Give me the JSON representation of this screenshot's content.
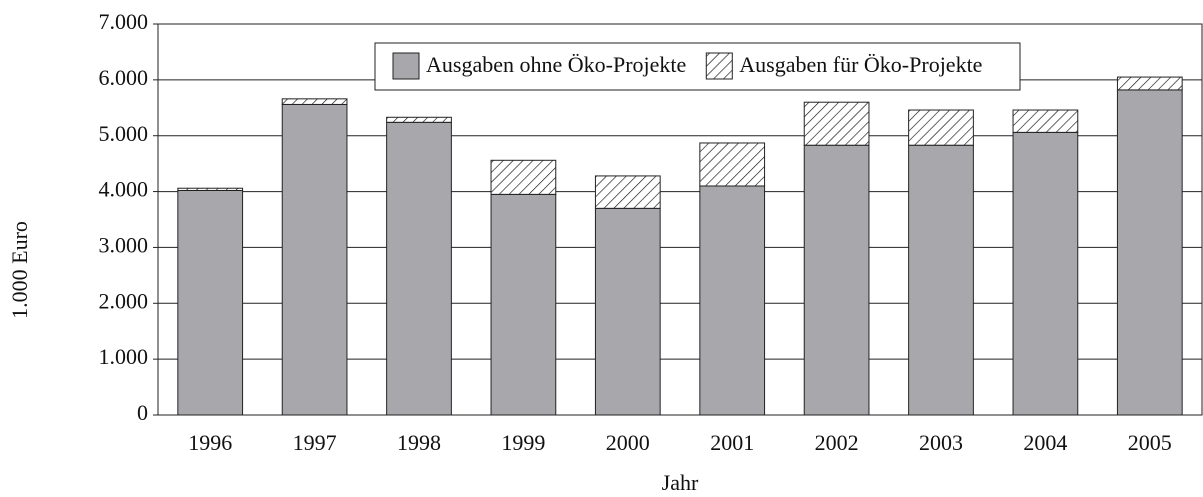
{
  "chart_data": {
    "type": "stacked_bar",
    "categories": [
      "1996",
      "1997",
      "1998",
      "1999",
      "2000",
      "2001",
      "2002",
      "2003",
      "2004",
      "2005"
    ],
    "series": [
      {
        "name": "Ausgaben ohne Öko-Projekte",
        "color": "#a8a8ac",
        "pattern": "solid",
        "values": [
          4020,
          5560,
          5240,
          3950,
          3700,
          4100,
          4830,
          4830,
          5060,
          5820
        ]
      },
      {
        "name": "Ausgaben für Öko-Projekte",
        "color": "#ffffff",
        "pattern": "hatch",
        "values": [
          40,
          100,
          90,
          610,
          580,
          770,
          770,
          630,
          400,
          230
        ]
      }
    ],
    "ylim": [
      0,
      7000
    ],
    "yticks": [
      0,
      {
        "value": 1000,
        "label": "1.000"
      },
      {
        "value": 2000,
        "label": "2.000"
      },
      {
        "value": 3000,
        "label": "3.000"
      },
      {
        "value": 4000,
        "label": "4.000"
      },
      {
        "value": 5000,
        "label": "5.000"
      },
      {
        "value": 6000,
        "label": "6.000"
      },
      {
        "value": 7000,
        "label": "7.000"
      }
    ],
    "ylabel": "1.000 Euro",
    "xlabel": "Jahr",
    "grid": true,
    "legend": "top"
  }
}
